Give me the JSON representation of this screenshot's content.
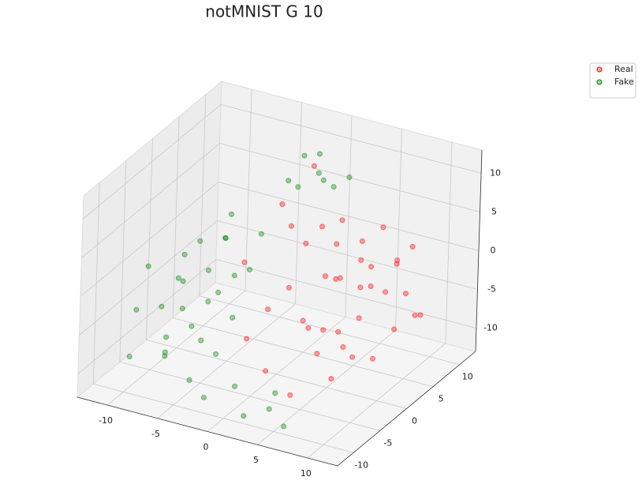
{
  "chart_data": {
    "type": "scatter3d",
    "title": "notMNIST G 10",
    "xlim": [
      -13,
      13
    ],
    "ylim": [
      -13,
      13
    ],
    "zlim": [
      -13,
      13
    ],
    "xticks": [
      -10,
      -5,
      0,
      5,
      10
    ],
    "yticks": [
      -10,
      -5,
      0,
      5,
      10
    ],
    "zticks": [
      -10,
      -5,
      0,
      5,
      10
    ],
    "grid": true,
    "legend": "upper right",
    "alpha": 0.35,
    "series": [
      {
        "name": "Real",
        "color": "#ff0000",
        "x": [
          5,
          6,
          8,
          3,
          7,
          9,
          4,
          2,
          10,
          6,
          1,
          8,
          5,
          3,
          7,
          11,
          4,
          2,
          9,
          6,
          0,
          -2,
          1,
          7,
          10,
          3,
          5,
          8,
          -1,
          4,
          12,
          6,
          2,
          9,
          -3,
          0,
          5,
          7,
          3,
          11
        ],
        "y": [
          2,
          4,
          0,
          5,
          -2,
          3,
          -3,
          1,
          5,
          -4,
          6,
          7,
          -1,
          3,
          2,
          1,
          8,
          -2,
          -3,
          6,
          2,
          4,
          -4,
          9,
          -1,
          0,
          10,
          -5,
          8,
          4,
          3,
          1,
          7,
          8,
          -1,
          -6,
          -7,
          4,
          -8,
          6
        ],
        "z": [
          0,
          -2,
          -3,
          2,
          -4,
          -1,
          -3,
          4,
          -2,
          -6,
          3,
          0,
          -5,
          -1,
          3,
          -4,
          1,
          0,
          -6,
          -3,
          5,
          6,
          -2,
          -1,
          -7,
          -6,
          2,
          -8,
          9,
          6,
          -3,
          -8,
          -4,
          2,
          1,
          -5,
          -10,
          1,
          -7,
          -5
        ]
      },
      {
        "name": "Fake",
        "color": "#008000",
        "x": [
          -8,
          -10,
          -6,
          -9,
          -7,
          -5,
          -11,
          -4,
          -8,
          -6,
          -3,
          -10,
          -2,
          0,
          2,
          -7,
          -5,
          -9,
          -4,
          -8,
          -1,
          0,
          -2,
          1,
          -3,
          2,
          -1,
          -6,
          -9,
          -12,
          4,
          6,
          -3,
          -7,
          -5,
          1,
          3,
          -11,
          -4,
          -6
        ],
        "y": [
          -3,
          0,
          -5,
          2,
          -8,
          -2,
          -6,
          -9,
          5,
          1,
          -6,
          -9,
          -10,
          -8,
          -10,
          4,
          -4,
          -1,
          2,
          -7,
          5,
          7,
          8,
          6,
          7,
          9,
          9,
          -10,
          -4,
          -2,
          -9,
          -10,
          -3,
          0,
          6,
          8,
          -6,
          3,
          -7,
          3
        ],
        "z": [
          -2,
          -4,
          -6,
          0,
          -8,
          -3,
          -5,
          -10,
          -1,
          2,
          -8,
          -9,
          -11,
          -10,
          -12,
          3,
          1,
          -7,
          -2,
          -3,
          8,
          9,
          10,
          9,
          7,
          8,
          10,
          -7,
          -9,
          -2,
          -11,
          -12,
          -5,
          -6,
          0,
          7,
          -11,
          -3,
          -6,
          -4
        ]
      }
    ]
  }
}
